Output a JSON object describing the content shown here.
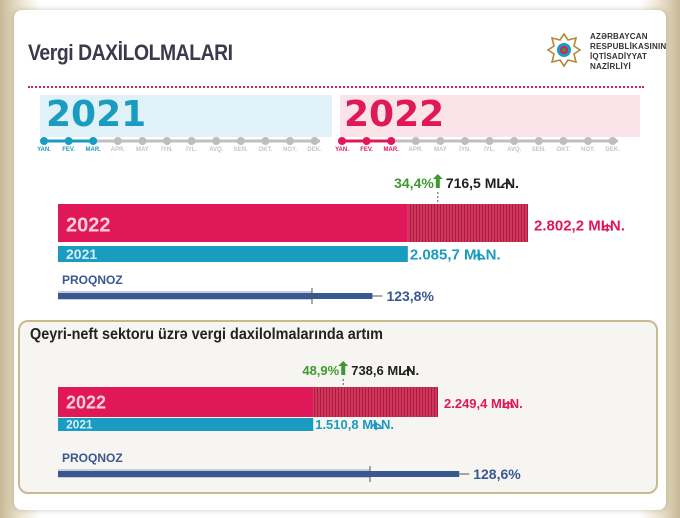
{
  "title": "Vergi DAXİLOLMALARI",
  "ministry_lines": [
    "AZƏRBAYCAN",
    "RESPUBLİKASININ",
    "İQTİSADİYYAT",
    "NAZİRLİYİ"
  ],
  "timeline": {
    "year_2021": "2021",
    "year_2022": "2022",
    "months": [
      "YAN.",
      "FEV.",
      "MAR.",
      "APR.",
      "MAY",
      "İYN.",
      "İYL.",
      "AVQ.",
      "SEN.",
      "OKT.",
      "NOY.",
      "DEK."
    ],
    "active_months": 3
  },
  "subtitle": "Qeyri-neft sektoru üzrə vergi daxilolmalarında artım",
  "colors": {
    "red": "#e0185a",
    "blue": "#1a9bc0",
    "navy": "#3a5890",
    "green": "#3e9a2f"
  },
  "chart_data": [
    {
      "type": "bar",
      "orientation": "horizontal",
      "series": [
        {
          "name": "2022",
          "value": 2802.2,
          "label": "2.802,2 MLN."
        },
        {
          "name": "2021",
          "value": 2085.7,
          "label": "2.085,7 MLN."
        }
      ],
      "increase": {
        "value": 716.5,
        "label": "716,5 MLN.",
        "percent_label": "34,4%"
      },
      "forecast": {
        "name": "PROQNOZ",
        "percent": 123.8,
        "label": "123,8%"
      }
    },
    {
      "type": "bar",
      "orientation": "horizontal",
      "series": [
        {
          "name": "2022",
          "value": 2249.4,
          "label": "2.249,4 MLN."
        },
        {
          "name": "2021",
          "value": 1510.8,
          "label": "1.510,8 MLN."
        }
      ],
      "increase": {
        "value": 738.6,
        "label": "738,6 MLN.",
        "percent_label": "48,9%"
      },
      "forecast": {
        "name": "PROQNOZ",
        "percent": 128.6,
        "label": "128,6%"
      }
    }
  ]
}
